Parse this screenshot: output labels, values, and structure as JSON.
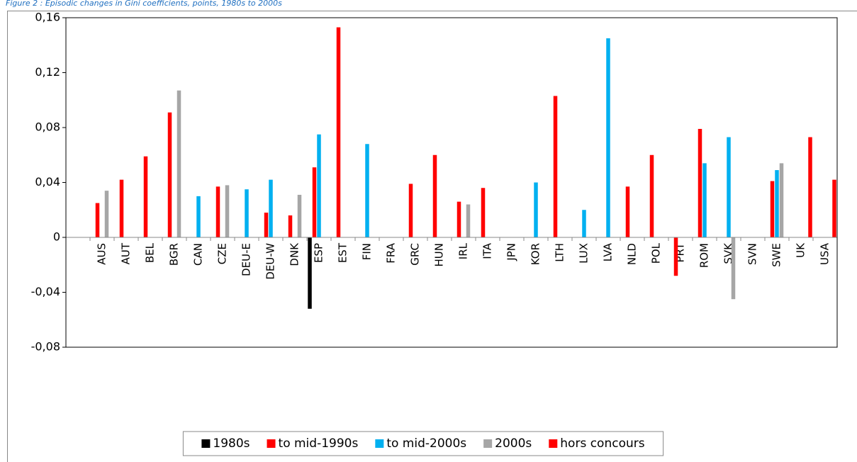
{
  "chart_data": {
    "type": "bar",
    "title": "Figure 2 : Episodic changes in Gini coefficients, points, 1980s to 2000s",
    "categories": [
      null,
      "AUS",
      "AUT",
      "BEL",
      "BGR",
      "CAN",
      "CZE",
      "DEU-E",
      "DEU-W",
      "DNK",
      "ESP",
      "EST",
      "FIN",
      "FRA",
      "GRC",
      "HUN",
      "IRL",
      "ITA",
      "JPN",
      "KOR",
      "LTH",
      "LUX",
      "LVA",
      "NLD",
      "POL",
      "PRT",
      "ROM",
      "SVK",
      "SVN",
      "SWE",
      "UK",
      "USA"
    ],
    "series": [
      {
        "name": "1980s",
        "color": "#000000",
        "values": [
          null,
          null,
          null,
          null,
          null,
          null,
          null,
          null,
          null,
          null,
          -0.052,
          null,
          null,
          null,
          null,
          null,
          null,
          null,
          null,
          null,
          null,
          null,
          null,
          null,
          null,
          null,
          null,
          null,
          null,
          null,
          null,
          null
        ]
      },
      {
        "name": "to mid-1990s",
        "color": "#ff0000",
        "values": [
          null,
          0.025,
          0.042,
          0.059,
          0.091,
          null,
          0.037,
          null,
          0.018,
          0.016,
          0.051,
          0.153,
          null,
          null,
          0.039,
          0.06,
          0.026,
          0.036,
          null,
          null,
          0.103,
          null,
          null,
          0.037,
          0.06,
          -0.028,
          0.079,
          null,
          null,
          0.041,
          null,
          null
        ]
      },
      {
        "name": "to mid-2000s",
        "color": "#00b0f0",
        "values": [
          null,
          null,
          null,
          null,
          null,
          0.03,
          null,
          0.035,
          0.042,
          null,
          0.075,
          null,
          0.068,
          null,
          null,
          null,
          null,
          null,
          null,
          0.04,
          null,
          0.02,
          0.145,
          null,
          null,
          null,
          0.054,
          0.073,
          null,
          0.049,
          null,
          null
        ]
      },
      {
        "name": "2000s",
        "color": "#a6a6a6",
        "values": [
          null,
          0.034,
          null,
          null,
          0.107,
          null,
          0.038,
          null,
          null,
          0.031,
          null,
          null,
          null,
          null,
          null,
          null,
          0.024,
          null,
          null,
          null,
          null,
          null,
          null,
          null,
          null,
          null,
          null,
          -0.045,
          null,
          0.054,
          null,
          null
        ]
      },
      {
        "name": "hors concours",
        "color": "#ff0000",
        "values": [
          null,
          null,
          null,
          null,
          null,
          null,
          null,
          null,
          null,
          null,
          null,
          null,
          null,
          null,
          null,
          null,
          null,
          null,
          null,
          null,
          null,
          null,
          null,
          null,
          null,
          null,
          null,
          null,
          null,
          null,
          0.073,
          0.042
        ]
      }
    ],
    "ylim": [
      -0.08,
      0.16
    ],
    "yticks": [
      {
        "value": -0.08,
        "label": "-0,08"
      },
      {
        "value": -0.04,
        "label": "-0,04"
      },
      0,
      {
        "value": 0.04,
        "label": "0,04"
      },
      {
        "value": 0.08,
        "label": "0,08"
      },
      {
        "value": 0.12,
        "label": "0,12"
      },
      {
        "value": 0.16,
        "label": "0,16"
      }
    ],
    "grid": false,
    "legend": "bottom"
  }
}
